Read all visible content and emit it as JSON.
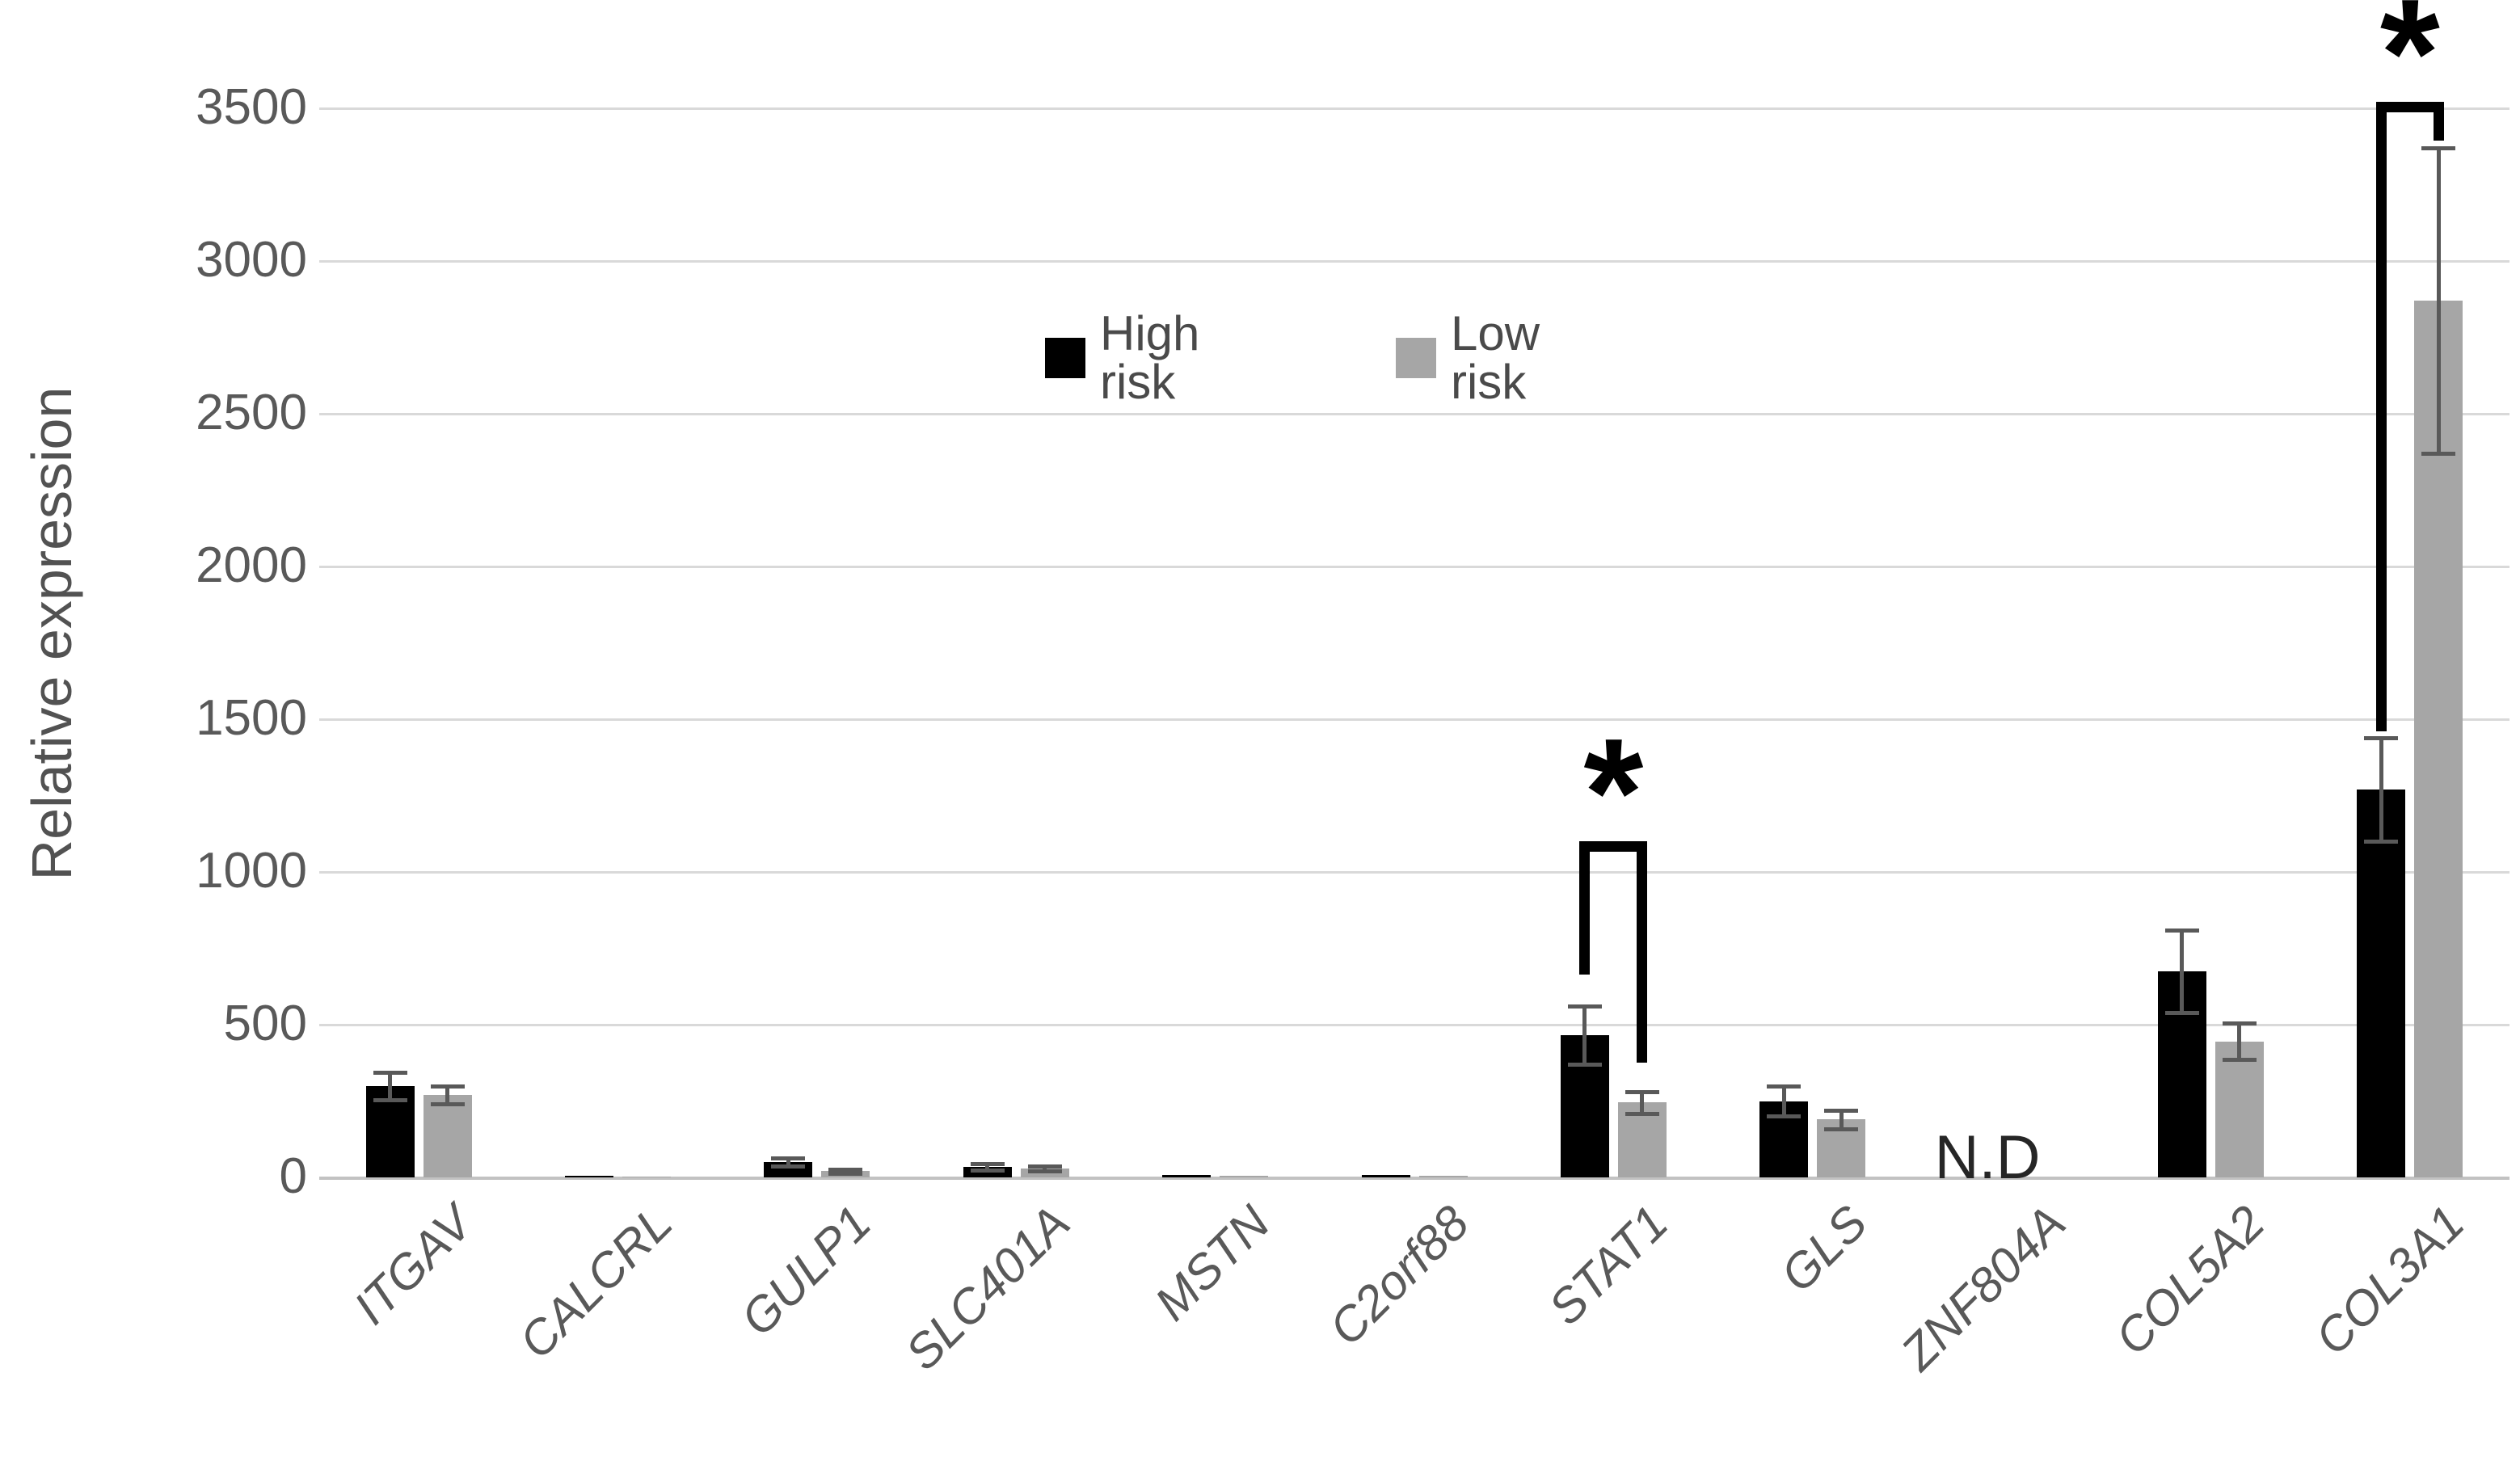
{
  "chart_data": {
    "type": "bar",
    "title": "",
    "ylabel": "Relative expression",
    "xlabel": "",
    "ylim": [
      0,
      3500
    ],
    "yticks": [
      0,
      500,
      1000,
      1500,
      2000,
      2500,
      3000,
      3500
    ],
    "grid": true,
    "legend_position": "top-center",
    "categories": [
      "ITGAV",
      "CALCRL",
      "GULP1",
      "SLC401A",
      "MSTN",
      "C2orf88",
      "STAT1",
      "GLS",
      "ZNF804A",
      "COL5A2",
      "COL3A1"
    ],
    "series": [
      {
        "name": "High risk",
        "color": "#000000",
        "values": [
          300,
          6,
          50,
          35,
          8,
          8,
          465,
          250,
          null,
          675,
          1270
        ],
        "errors": [
          45,
          0,
          13,
          10,
          0,
          0,
          95,
          50,
          null,
          135,
          170
        ]
      },
      {
        "name": "Low risk",
        "color": "#a6a6a6",
        "values": [
          270,
          3,
          20,
          30,
          4,
          4,
          245,
          190,
          null,
          445,
          2870
        ],
        "errors": [
          30,
          0,
          6,
          8,
          0,
          0,
          35,
          30,
          null,
          60,
          500
        ]
      }
    ],
    "annotations": {
      "not_detected": {
        "category": "ZNF804A",
        "text": "N.D"
      },
      "significance": [
        {
          "category": "STAT1",
          "symbol": "*",
          "bracket_top": 1100,
          "high_leg_bottom": 665,
          "low_leg_bottom": 375
        },
        {
          "category": "COL3A1",
          "symbol": "*",
          "bracket_top": 3520,
          "high_leg_bottom": 1460,
          "low_leg_bottom": 3395
        }
      ]
    },
    "colors": {
      "high_risk": "#000000",
      "low_risk": "#a6a6a6",
      "gridline": "#d9d9d9",
      "axis_line": "#c2c2c2",
      "error_bar": "#595959",
      "tick_text": "#595959",
      "axis_title_text": "#525252",
      "legend_text": "#4a4a4a",
      "nd_text": "#262626",
      "significance_mark": "#000000"
    }
  }
}
